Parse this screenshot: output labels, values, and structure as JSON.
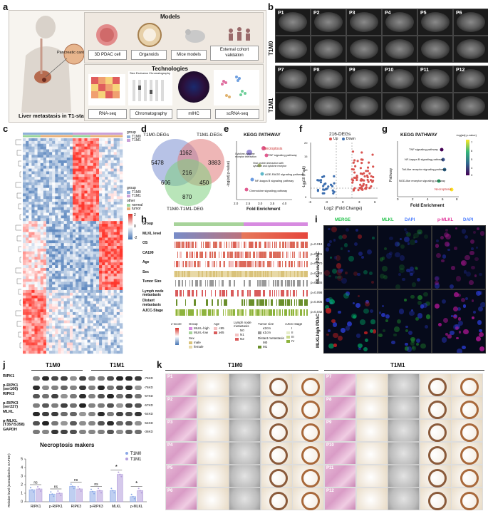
{
  "panels": [
    "a",
    "b",
    "c",
    "d",
    "e",
    "f",
    "g",
    "h",
    "i",
    "j",
    "k"
  ],
  "panel_a": {
    "models_title": "Models",
    "models": [
      "3D PDAC cell",
      "Organoids",
      "Mice models",
      "External cohort validation"
    ],
    "tech_title": "Technologies",
    "techs": [
      "RNA-seq",
      "Chromatography",
      "mIHC",
      "scRNA-seq"
    ],
    "organ_label": "Pancreatic cancer",
    "caption": "Liver metastasis in T1-stage",
    "chroma_title": "Size Exclusion Chromatography"
  },
  "panel_b": {
    "row_groups": [
      "T1M0",
      "T1M1"
    ],
    "patients_top": [
      "P1",
      "P2",
      "P3",
      "P4",
      "P5",
      "P6"
    ],
    "patients_bottom": [
      "P7",
      "P8",
      "P9",
      "P10",
      "P11",
      "P12"
    ]
  },
  "panel_c": {
    "legend_group_title": "group",
    "legend_groups": [
      "T1M0",
      "T1M1"
    ],
    "legend_group_colors": [
      "#8fb0d9",
      "#c9a0d8"
    ],
    "legend_group2_title": "group",
    "legend_other_title": "other",
    "legend_other": [
      "normal",
      "tumor"
    ],
    "legend_other_colors": [
      "#9ad49a",
      "#e8b27a"
    ],
    "scale_ticks": [
      "2",
      "0",
      "-2"
    ]
  },
  "panel_d": {
    "sets": [
      "T1M0-DEGs",
      "T1M1-DEGs",
      "T1M0-T1M1-DEG"
    ],
    "set_colors": [
      "#7b8fd1",
      "#e07a7a",
      "#7fcf7f"
    ],
    "regions": [
      "5478",
      "1162",
      "3883",
      "216",
      "606",
      "450",
      "870"
    ]
  },
  "panel_e": {
    "title": "KEGG PATHWAY",
    "xlabel": "Fold Enrichment",
    "ylabel": "-log(adj p-value)",
    "terms": [
      "Necroptosis",
      "TNF signaling pathway",
      "Cytokine-cytokine receptor interaction",
      "Viral protein interaction with cytokine and cytokine receptor",
      "AGE-RAGE signaling pathway",
      "NF-kappa B signaling pathway",
      "Chemokine signaling pathway"
    ],
    "xticks": [
      "2.0",
      "2.5",
      "3.0",
      "3.5",
      "4.0"
    ]
  },
  "panel_f": {
    "title": "216-DEGs",
    "legend": [
      "Up",
      "Down"
    ],
    "legend_colors": [
      "#d9534f",
      "#3d6fb0"
    ],
    "xlabel": "Log2 (Fold Change)",
    "ylabel": "-Log10 (P.adj)",
    "xticks": [
      "-6",
      "-3",
      "0",
      "3",
      "6"
    ],
    "yticks": [
      "0",
      "5",
      "10",
      "15",
      "20"
    ]
  },
  "panel_g": {
    "title": "KEGG PATHWAY",
    "ylabel": "Pathway",
    "xlabel": "Fold Enrichment",
    "terms": [
      "TNF signaling pathway",
      "NF-kappa B signaling pathway",
      "Toll-like receptor signaling pathway",
      "NOD-like receptor signaling pathway",
      "Necroptosis"
    ],
    "colorbar_title": "-log(adj p-value)",
    "colorbar_ticks": [
      "7",
      "6",
      "5",
      "4",
      "3"
    ],
    "xticks": [
      "0",
      "2",
      "4",
      "6",
      "8"
    ]
  },
  "panel_h": {
    "rows": [
      "Group",
      "MLKL level",
      "OS",
      "CA199",
      "Age",
      "Sex",
      "Tumor Size",
      "Lymph node metastasis",
      "Distant metastasis",
      "AJCC-Stage"
    ],
    "pvalues": [
      "p=0.018",
      "p=0.001",
      "p=0.270",
      "p=0.342",
      "p=0.265",
      "p=0.098",
      "p=0.006",
      "p=0.042"
    ],
    "legend_titles": [
      "z-score",
      "Group",
      "Age",
      "Lymph node metastasis",
      "Tumor size",
      "AJCC-stage",
      "Sex",
      "Distant metastasis"
    ],
    "legend_group": [
      "MLKL-high",
      "MLKL-low"
    ],
    "legend_age": [
      "<65",
      "≥65"
    ],
    "legend_sex": [
      "male",
      "female"
    ],
    "legend_ln": [
      "N0",
      "N1",
      "N2"
    ],
    "legend_size": [
      "≤2cm",
      "≤1cm"
    ],
    "legend_dm": [
      "M0",
      "M1"
    ],
    "legend_ajcc": [
      "I",
      "II",
      "III",
      "IV"
    ]
  },
  "panel_i": {
    "columns": [
      "MERGE",
      "MLKL",
      "DAPI",
      "p-MLKL",
      "DAPI"
    ],
    "rows": [
      "MLKLlow PDAC",
      "MLKLhigh PDAC"
    ]
  },
  "panel_j": {
    "groups": [
      "T1M0",
      "T1M1"
    ],
    "blots": [
      {
        "name": "RIPK1",
        "kd": "-76KD"
      },
      {
        "name": "p-RIPK1 (ser166)",
        "kd": "-76KD"
      },
      {
        "name": "RIPK3",
        "kd": "-57KD"
      },
      {
        "name": "p-RIPK3 (ser227)",
        "kd": "-57KD"
      },
      {
        "name": "MLKL",
        "kd": "-54KD"
      },
      {
        "name": "p-MLKL (T357/S358)",
        "kd": "-54KD"
      },
      {
        "name": "GAPDH",
        "kd": "-36KD"
      }
    ],
    "chart_title": "Necroptosis makers",
    "ylabel": "Relative level (normalized to GAPDH)",
    "legend": [
      "T1M0",
      "T1M1"
    ],
    "legend_colors": [
      "#8aa7e6",
      "#b39ddb"
    ],
    "significance": [
      "ns",
      "ns",
      "ns",
      "ns",
      "*",
      "*"
    ]
  },
  "chart_data": {
    "type": "bar",
    "title": "Necroptosis makers",
    "categories": [
      "RIPK1",
      "p-RIPK1",
      "RIPK3",
      "p-RIPK3",
      "MLKL",
      "p-MLKL"
    ],
    "series": [
      {
        "name": "T1M0",
        "values": [
          1.4,
          0.9,
          1.8,
          1.2,
          1.3,
          0.6
        ]
      },
      {
        "name": "T1M1",
        "values": [
          1.5,
          1.0,
          1.5,
          1.3,
          3.2,
          1.3
        ]
      }
    ],
    "ylabel": "Relative level (normalized to GAPDH)",
    "ylim": [
      0,
      5
    ],
    "yticks": [
      "0",
      "1",
      "2",
      "3",
      "4",
      "5"
    ]
  },
  "panel_k": {
    "groups": [
      "T1M0",
      "T1M1"
    ],
    "left_patients": [
      "P1",
      "P2",
      "P3",
      "P4",
      "P5",
      "P6"
    ],
    "right_patients": [
      "P7",
      "P8",
      "P9",
      "P10",
      "P11",
      "P12"
    ]
  }
}
